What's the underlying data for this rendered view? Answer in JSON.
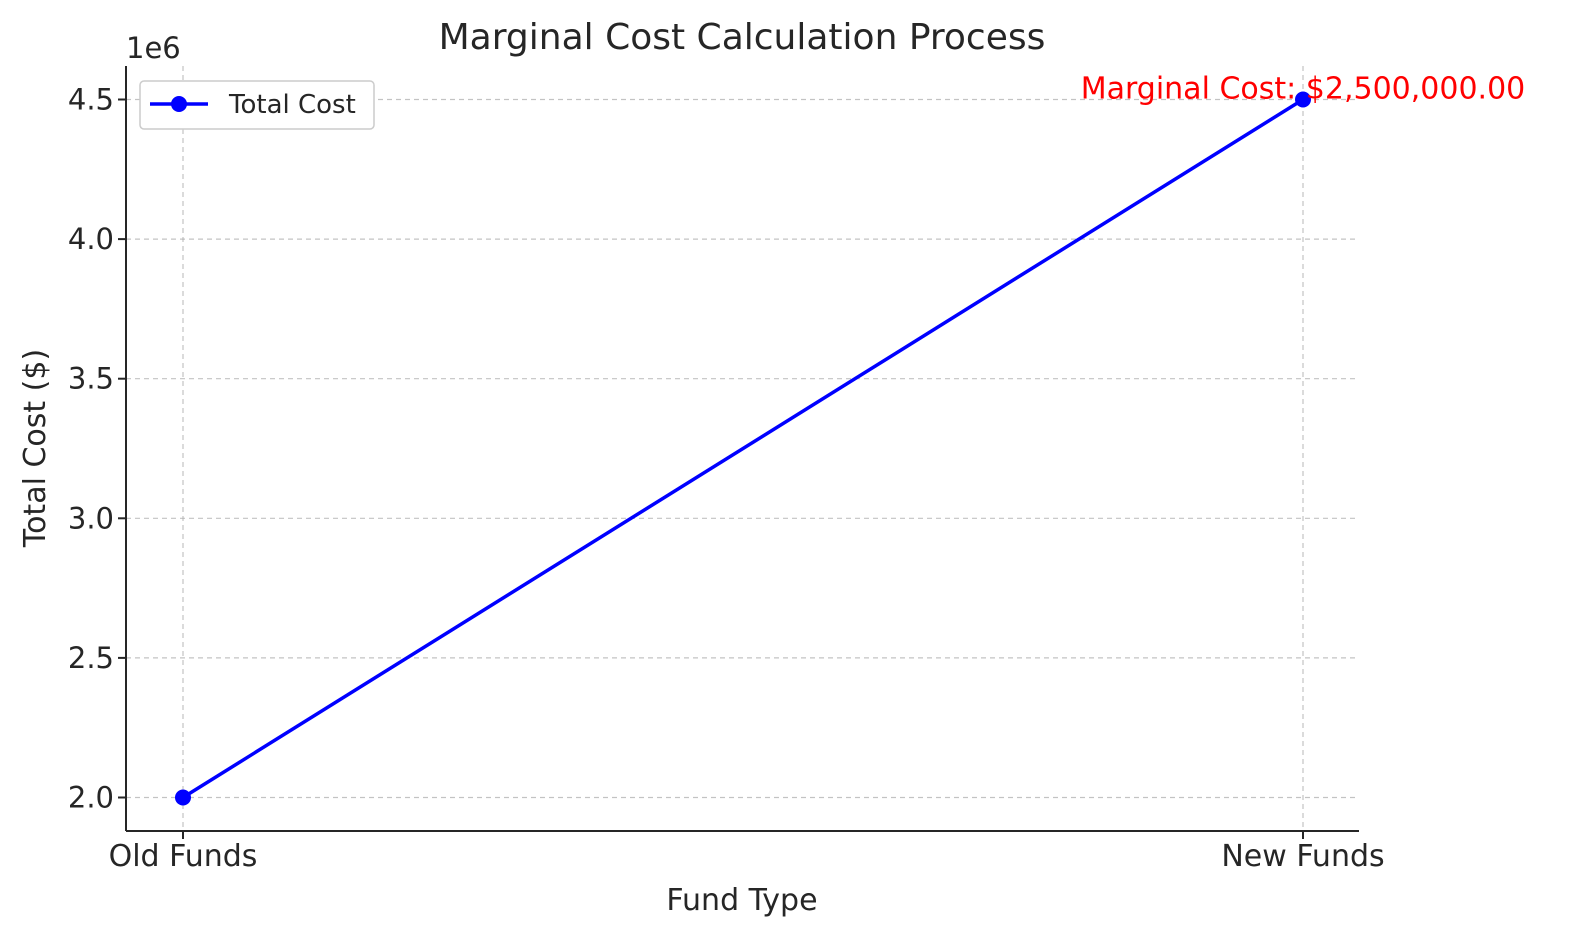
{
  "chart_data": {
    "type": "line",
    "title": "Marginal Cost Calculation Process",
    "xlabel": "Fund Type",
    "ylabel": "Total Cost ($)",
    "y_offset_label": "1e6",
    "y_scale": 1000000,
    "categories": [
      "Old Funds",
      "New Funds"
    ],
    "series": [
      {
        "name": "Total Cost",
        "values": [
          2000000,
          4500000
        ],
        "color": "#0000ff",
        "marker": "circle"
      }
    ],
    "yticks": [
      2.0,
      2.5,
      3.0,
      3.5,
      4.0,
      4.5
    ],
    "ytick_labels": [
      "2.0",
      "2.5",
      "3.0",
      "3.5",
      "4.0",
      "4.5"
    ],
    "ylim": [
      1880000,
      4620000
    ],
    "grid": true,
    "legend_position": "top-left",
    "annotation": {
      "text": "Marginal Cost: $2,500,000.00",
      "category": "New Funds",
      "y": 4500000,
      "color": "#ff0000"
    }
  }
}
